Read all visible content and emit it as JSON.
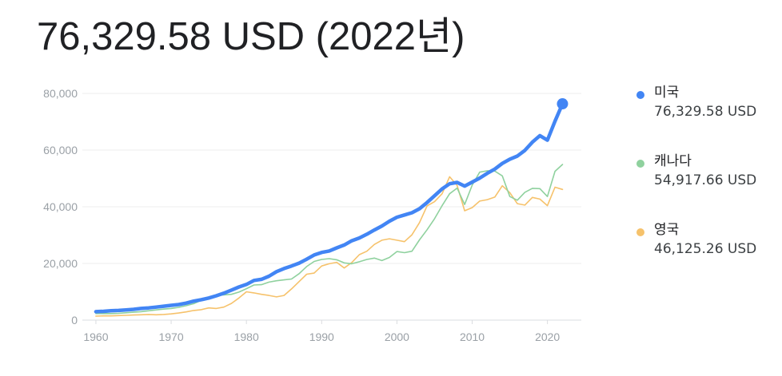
{
  "headline": "76,329.58 USD (2022년)",
  "legend": [
    {
      "name": "미국",
      "value": "76,329.58 USD",
      "color": "#4285f4"
    },
    {
      "name": "캐나다",
      "value": "54,917.66 USD",
      "color": "#8fd19e"
    },
    {
      "name": "영국",
      "value": "46,125.26 USD",
      "color": "#f6c26b"
    }
  ],
  "chart_data": {
    "type": "line",
    "title": "",
    "xlabel": "",
    "ylabel": "",
    "xlim": [
      1960,
      2022
    ],
    "ylim": [
      0,
      80000
    ],
    "x_ticks": [
      "1960",
      "1970",
      "1980",
      "1990",
      "2000",
      "2010",
      "2020"
    ],
    "y_ticks": [
      "0",
      "20,000",
      "40,000",
      "60,000",
      "80,000"
    ],
    "grid": "horizontal",
    "legend_position": "right",
    "x": [
      1960,
      1961,
      1962,
      1963,
      1964,
      1965,
      1966,
      1967,
      1968,
      1969,
      1970,
      1971,
      1972,
      1973,
      1974,
      1975,
      1976,
      1977,
      1978,
      1979,
      1980,
      1981,
      1982,
      1983,
      1984,
      1985,
      1986,
      1987,
      1988,
      1989,
      1990,
      1991,
      1992,
      1993,
      1994,
      1995,
      1996,
      1997,
      1998,
      1999,
      2000,
      2001,
      2002,
      2003,
      2004,
      2005,
      2006,
      2007,
      2008,
      2009,
      2010,
      2011,
      2012,
      2013,
      2014,
      2015,
      2016,
      2017,
      2018,
      2019,
      2020,
      2021,
      2022
    ],
    "series": [
      {
        "name": "미국",
        "color": "#4285f4",
        "values": [
          3000,
          3100,
          3300,
          3400,
          3600,
          3800,
          4100,
          4300,
          4600,
          4900,
          5200,
          5500,
          6000,
          6700,
          7200,
          7800,
          8600,
          9500,
          10600,
          11700,
          12600,
          14000,
          14400,
          15500,
          17100,
          18200,
          19100,
          20100,
          21500,
          23000,
          23900,
          24400,
          25500,
          26500,
          28000,
          29000,
          30300,
          31800,
          33200,
          34900,
          36300,
          37100,
          37900,
          39300,
          41500,
          43900,
          46300,
          48100,
          48600,
          47300,
          48700,
          50100,
          51800,
          53300,
          55300,
          56800,
          57900,
          59900,
          62800,
          65100,
          63500,
          70200,
          76330
        ]
      },
      {
        "name": "캐나다",
        "color": "#8fd19e",
        "values": [
          2300,
          2300,
          2300,
          2400,
          2600,
          2800,
          3000,
          3300,
          3600,
          3900,
          4100,
          4500,
          5100,
          5800,
          7000,
          7500,
          8800,
          8900,
          9100,
          9900,
          11100,
          12400,
          12500,
          13400,
          13900,
          14200,
          14500,
          16400,
          18900,
          20700,
          21400,
          21700,
          21300,
          20200,
          19900,
          20600,
          21400,
          21900,
          21000,
          22100,
          24200,
          23800,
          24300,
          28300,
          31900,
          35800,
          40400,
          44600,
          46600,
          40800,
          47600,
          52200,
          52700,
          52600,
          50900,
          43600,
          42300,
          45100,
          46500,
          46400,
          43600,
          52500,
          54918
        ]
      },
      {
        "name": "영국",
        "color": "#f6c26b",
        "values": [
          1400,
          1500,
          1500,
          1600,
          1700,
          1800,
          1900,
          2000,
          1900,
          2000,
          2200,
          2500,
          2900,
          3400,
          3700,
          4300,
          4100,
          4600,
          5900,
          7800,
          10000,
          9600,
          9100,
          8700,
          8200,
          8700,
          11000,
          13600,
          16200,
          16600,
          19100,
          19900,
          20400,
          18400,
          20300,
          23100,
          24300,
          26700,
          28200,
          28700,
          28200,
          27700,
          30100,
          34400,
          40300,
          41800,
          44600,
          50600,
          47500,
          38600,
          39700,
          42000,
          42500,
          43400,
          47400,
          45000,
          41100,
          40600,
          43300,
          42700,
          40400,
          46900,
          46125
        ]
      }
    ]
  }
}
